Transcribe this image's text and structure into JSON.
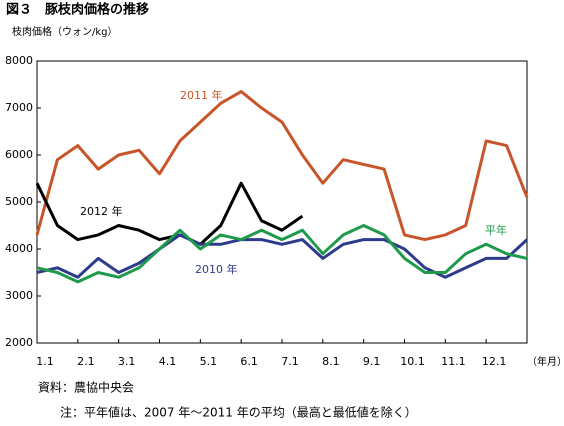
{
  "chart_data": {
    "type": "line",
    "title": "図３　豚枝肉価格の推移",
    "y_label": "枝肉価格（ウォン/kg）",
    "x_label": "（年月）",
    "source": "資料：農協中央会",
    "note": "注：平年値は、2007 年～2011 年の平均（最高と最低値を除く）",
    "x": [
      1,
      1.5,
      2,
      2.5,
      3,
      3.5,
      4,
      4.5,
      5,
      5.5,
      6,
      6.5,
      7,
      7.5,
      8,
      8.5,
      9,
      9.5,
      10,
      10.5,
      11,
      11.5,
      12,
      12.5,
      13
    ],
    "xlim": [
      1,
      13
    ],
    "xticks": [
      {
        "value": 1,
        "label": "1.1"
      },
      {
        "value": 2,
        "label": "2.1"
      },
      {
        "value": 3,
        "label": "3.1"
      },
      {
        "value": 4,
        "label": "4.1"
      },
      {
        "value": 5,
        "label": "5.1"
      },
      {
        "value": 6,
        "label": "6.1"
      },
      {
        "value": 7,
        "label": "7.1"
      },
      {
        "value": 8,
        "label": "8.1"
      },
      {
        "value": 9,
        "label": "9.1"
      },
      {
        "value": 10,
        "label": "10.1"
      },
      {
        "value": 11,
        "label": "11.1"
      },
      {
        "value": 12,
        "label": "12.1"
      }
    ],
    "ylim": [
      2000,
      8000
    ],
    "yticks": [
      2000,
      3000,
      4000,
      5000,
      6000,
      7000,
      8000
    ],
    "series": [
      {
        "name": "2011 年",
        "color": "#c8552a",
        "values": [
          4300,
          5900,
          6200,
          5700,
          6000,
          6100,
          5600,
          6300,
          6700,
          7100,
          7350,
          7000,
          6700,
          6000,
          5400,
          5900,
          5800,
          5700,
          4300,
          4200,
          4300,
          4500,
          6300,
          6200,
          5100
        ]
      },
      {
        "name": "2012 年",
        "color": "#000000",
        "values": [
          5400,
          4500,
          4200,
          4300,
          4500,
          4400,
          4200,
          4300,
          4100,
          4500,
          5400,
          4600,
          4400,
          4700,
          null,
          null,
          null,
          null,
          null,
          null,
          null,
          null,
          null,
          null,
          null
        ]
      },
      {
        "name": "2010 年",
        "color": "#2e3a8c",
        "values": [
          3500,
          3600,
          3400,
          3800,
          3500,
          3700,
          4000,
          4300,
          4100,
          4100,
          4200,
          4200,
          4100,
          4200,
          3800,
          4100,
          4200,
          4200,
          4000,
          3600,
          3400,
          3600,
          3800,
          3800,
          4200
        ]
      },
      {
        "name": "平年",
        "color": "#1e9a4a",
        "values": [
          3600,
          3500,
          3300,
          3500,
          3400,
          3600,
          4000,
          4400,
          4000,
          4300,
          4200,
          4400,
          4200,
          4400,
          3900,
          4300,
          4500,
          4300,
          3800,
          3500,
          3500,
          3900,
          4100,
          3900,
          3800
        ]
      }
    ]
  }
}
